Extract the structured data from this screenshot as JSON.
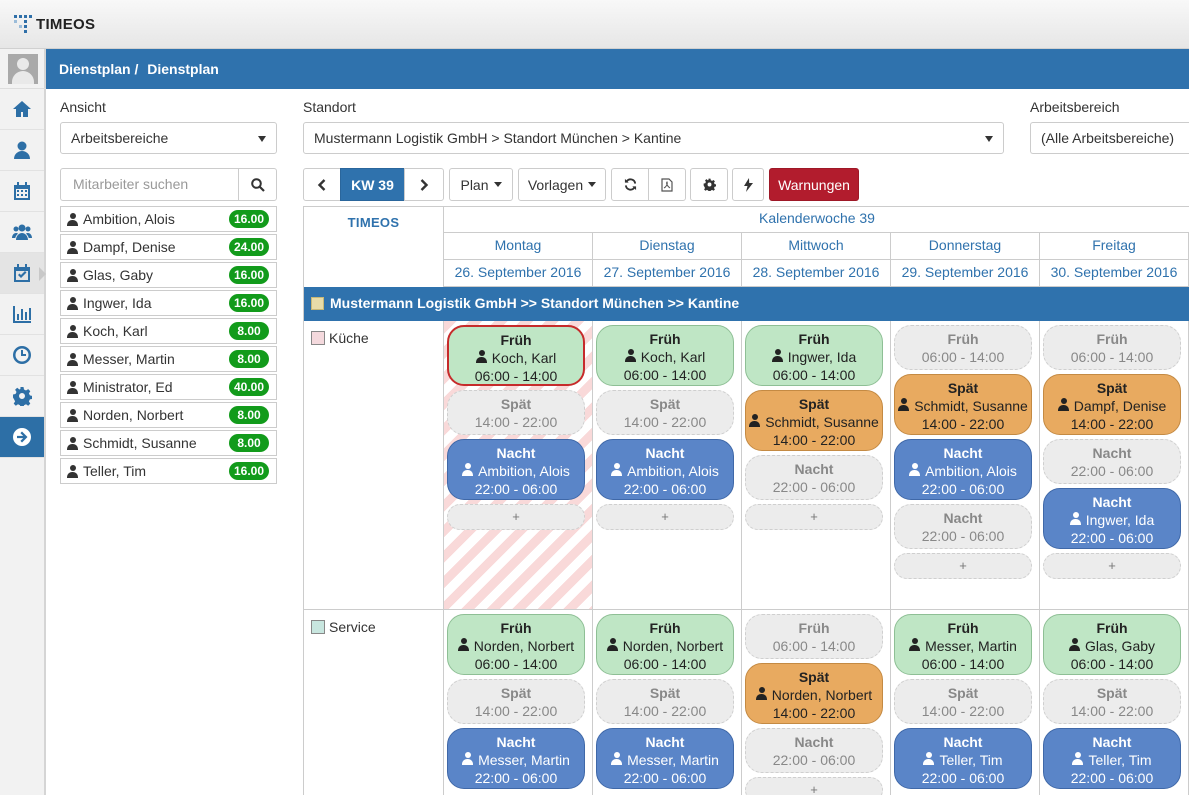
{
  "app": {
    "logo": "TIMEOS"
  },
  "breadcrumb": {
    "parent": "Dienstplan",
    "separator": "/",
    "current": "Dienstplan"
  },
  "filters": {
    "ansicht_label": "Ansicht",
    "ansicht_value": "Arbeitsbereiche",
    "standort_label": "Standort",
    "standort_value": "Mustermann Logistik GmbH > Standort München > Kantine",
    "arbeitsbereich_label": "Arbeitsbereich",
    "arbeitsbereich_value": "(Alle Arbeitsbereiche)"
  },
  "search": {
    "placeholder": "Mitarbeiter suchen"
  },
  "employees": [
    {
      "name": "Ambition, Alois",
      "hours": "16.00"
    },
    {
      "name": "Dampf, Denise",
      "hours": "24.00"
    },
    {
      "name": "Glas, Gaby",
      "hours": "16.00"
    },
    {
      "name": "Ingwer, Ida",
      "hours": "16.00"
    },
    {
      "name": "Koch, Karl",
      "hours": "8.00"
    },
    {
      "name": "Messer, Martin",
      "hours": "8.00"
    },
    {
      "name": "Ministrator, Ed",
      "hours": "40.00"
    },
    {
      "name": "Norden, Norbert",
      "hours": "8.00"
    },
    {
      "name": "Schmidt, Susanne",
      "hours": "8.00"
    },
    {
      "name": "Teller, Tim",
      "hours": "16.00"
    }
  ],
  "toolbar": {
    "week": "KW 39",
    "plan": "Plan",
    "vorlagen": "Vorlagen",
    "warnungen": "Warnungen"
  },
  "calendar": {
    "corner": "TIMEOS",
    "week_title": "Kalenderwoche 39",
    "days": [
      {
        "name": "Montag",
        "date": "26. September 2016"
      },
      {
        "name": "Dienstag",
        "date": "27. September 2016"
      },
      {
        "name": "Mittwoch",
        "date": "28. September 2016"
      },
      {
        "name": "Donnerstag",
        "date": "29. September 2016"
      },
      {
        "name": "Freitag",
        "date": "30. September 2016"
      }
    ],
    "location": "Mustermann Logistik GmbH >> Standort München >> Kantine",
    "add_label": "+"
  },
  "areas": [
    {
      "name": "Küche",
      "color": "#f4d9dd",
      "days": [
        [
          {
            "type": "frueh",
            "title": "Früh",
            "person": "Koch, Karl",
            "time": "06:00 - 14:00",
            "selected": true
          },
          {
            "type": "empty",
            "title": "Spät",
            "time": "14:00 - 22:00"
          },
          {
            "type": "nacht",
            "title": "Nacht",
            "person": "Ambition, Alois",
            "time": "22:00 - 06:00"
          },
          {
            "type": "add"
          }
        ],
        [
          {
            "type": "frueh",
            "title": "Früh",
            "person": "Koch, Karl",
            "time": "06:00 - 14:00"
          },
          {
            "type": "empty",
            "title": "Spät",
            "time": "14:00 - 22:00"
          },
          {
            "type": "nacht",
            "title": "Nacht",
            "person": "Ambition, Alois",
            "time": "22:00 - 06:00"
          },
          {
            "type": "add"
          }
        ],
        [
          {
            "type": "frueh",
            "title": "Früh",
            "person": "Ingwer, Ida",
            "time": "06:00 - 14:00"
          },
          {
            "type": "spaet",
            "title": "Spät",
            "person": "Schmidt, Susanne",
            "time": "14:00 - 22:00"
          },
          {
            "type": "empty",
            "title": "Nacht",
            "time": "22:00 - 06:00"
          },
          {
            "type": "add"
          }
        ],
        [
          {
            "type": "empty",
            "title": "Früh",
            "time": "06:00 - 14:00"
          },
          {
            "type": "spaet",
            "title": "Spät",
            "person": "Schmidt, Susanne",
            "time": "14:00 - 22:00"
          },
          {
            "type": "nacht",
            "title": "Nacht",
            "person": "Ambition, Alois",
            "time": "22:00 - 06:00"
          },
          {
            "type": "empty",
            "title": "Nacht",
            "time": "22:00 - 06:00"
          },
          {
            "type": "add"
          }
        ],
        [
          {
            "type": "empty",
            "title": "Früh",
            "time": "06:00 - 14:00"
          },
          {
            "type": "spaet",
            "title": "Spät",
            "person": "Dampf, Denise",
            "time": "14:00 - 22:00"
          },
          {
            "type": "empty",
            "title": "Nacht",
            "time": "22:00 - 06:00"
          },
          {
            "type": "nacht",
            "title": "Nacht",
            "person": "Ingwer, Ida",
            "time": "22:00 - 06:00"
          },
          {
            "type": "add"
          }
        ]
      ]
    },
    {
      "name": "Service",
      "color": "#c8e6df",
      "days": [
        [
          {
            "type": "frueh",
            "title": "Früh",
            "person": "Norden, Norbert",
            "time": "06:00 - 14:00"
          },
          {
            "type": "empty",
            "title": "Spät",
            "time": "14:00 - 22:00"
          },
          {
            "type": "nacht",
            "title": "Nacht",
            "person": "Messer, Martin",
            "time": "22:00 - 06:00"
          }
        ],
        [
          {
            "type": "frueh",
            "title": "Früh",
            "person": "Norden, Norbert",
            "time": "06:00 - 14:00"
          },
          {
            "type": "empty",
            "title": "Spät",
            "time": "14:00 - 22:00"
          },
          {
            "type": "nacht",
            "title": "Nacht",
            "person": "Messer, Martin",
            "time": "22:00 - 06:00"
          }
        ],
        [
          {
            "type": "empty",
            "title": "Früh",
            "time": "06:00 - 14:00"
          },
          {
            "type": "spaet",
            "title": "Spät",
            "person": "Norden, Norbert",
            "time": "14:00 - 22:00"
          },
          {
            "type": "empty",
            "title": "Nacht",
            "time": "22:00 - 06:00"
          },
          {
            "type": "add"
          }
        ],
        [
          {
            "type": "frueh",
            "title": "Früh",
            "person": "Messer, Martin",
            "time": "06:00 - 14:00"
          },
          {
            "type": "empty",
            "title": "Spät",
            "time": "14:00 - 22:00"
          },
          {
            "type": "nacht",
            "title": "Nacht",
            "person": "Teller, Tim",
            "time": "22:00 - 06:00"
          }
        ],
        [
          {
            "type": "frueh",
            "title": "Früh",
            "person": "Glas, Gaby",
            "time": "06:00 - 14:00"
          },
          {
            "type": "empty",
            "title": "Spät",
            "time": "14:00 - 22:00"
          },
          {
            "type": "nacht",
            "title": "Nacht",
            "person": "Teller, Tim",
            "time": "22:00 - 06:00"
          }
        ]
      ]
    }
  ]
}
